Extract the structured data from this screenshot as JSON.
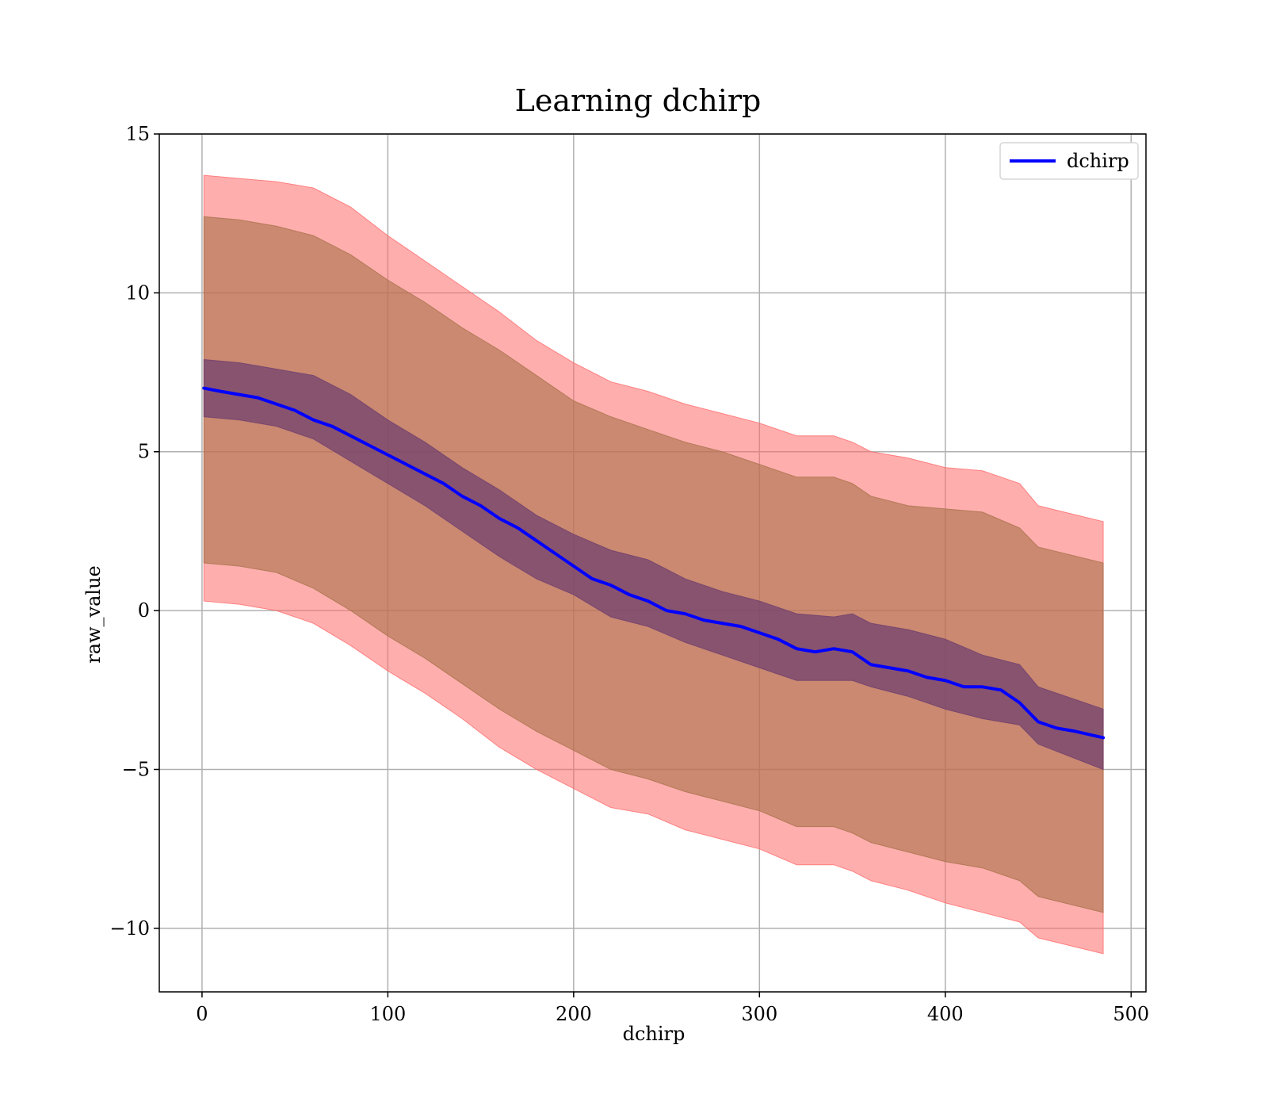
{
  "chart_data": {
    "type": "line",
    "title": "Learning dchirp",
    "xlabel": "dchirp",
    "ylabel": "raw_value",
    "xlim": [
      -23,
      508
    ],
    "ylim": [
      -12,
      15
    ],
    "xticks": [
      0,
      100,
      200,
      300,
      400,
      500
    ],
    "xtick_labels": [
      "0",
      "100",
      "200",
      "300",
      "400",
      "500"
    ],
    "yticks": [
      -10,
      -5,
      0,
      5,
      10,
      15
    ],
    "ytick_labels": [
      "−10",
      "−5",
      "0",
      "5",
      "10",
      "15"
    ],
    "grid": true,
    "legend_position": "top-right",
    "legend": [
      "dchirp"
    ],
    "colors": {
      "line": "#0000ff",
      "outer_band": "#ff6b6b",
      "middle_band": "#a9734b",
      "inner_band": "#6f3f6f"
    },
    "series": [
      {
        "name": "dchirp",
        "x": [
          1,
          10,
          20,
          30,
          40,
          50,
          60,
          70,
          80,
          90,
          100,
          110,
          120,
          130,
          140,
          150,
          160,
          170,
          180,
          190,
          200,
          210,
          220,
          230,
          240,
          250,
          260,
          270,
          280,
          290,
          300,
          310,
          320,
          330,
          340,
          350,
          360,
          370,
          380,
          390,
          400,
          410,
          420,
          430,
          440,
          450,
          460,
          470,
          485
        ],
        "y": [
          7.0,
          6.9,
          6.8,
          6.7,
          6.5,
          6.3,
          6.0,
          5.8,
          5.5,
          5.2,
          4.9,
          4.6,
          4.3,
          4.0,
          3.6,
          3.3,
          2.9,
          2.6,
          2.2,
          1.8,
          1.4,
          1.0,
          0.8,
          0.5,
          0.3,
          0.0,
          -0.1,
          -0.3,
          -0.4,
          -0.5,
          -0.7,
          -0.9,
          -1.2,
          -1.3,
          -1.2,
          -1.3,
          -1.7,
          -1.8,
          -1.9,
          -2.1,
          -2.2,
          -2.4,
          -2.4,
          -2.5,
          -2.9,
          -3.5,
          -3.7,
          -3.8,
          -4.0
        ]
      }
    ],
    "bands": [
      {
        "x": [
          1,
          20,
          40,
          60,
          80,
          100,
          120,
          140,
          160,
          180,
          200,
          220,
          240,
          260,
          280,
          300,
          320,
          340,
          350,
          360,
          380,
          400,
          420,
          440,
          450,
          485
        ],
        "upper": [
          13.7,
          13.6,
          13.5,
          13.3,
          12.7,
          11.8,
          11.0,
          10.2,
          9.4,
          8.5,
          7.8,
          7.2,
          6.9,
          6.5,
          6.2,
          5.9,
          5.5,
          5.5,
          5.3,
          5.0,
          4.8,
          4.5,
          4.4,
          4.0,
          3.3,
          2.8
        ],
        "lower": [
          0.3,
          0.2,
          0.0,
          -0.4,
          -1.1,
          -1.9,
          -2.6,
          -3.4,
          -4.3,
          -5.0,
          -5.6,
          -6.2,
          -6.4,
          -6.9,
          -7.2,
          -7.5,
          -8.0,
          -8.0,
          -8.2,
          -8.5,
          -8.8,
          -9.2,
          -9.5,
          -9.8,
          -10.3,
          -10.8
        ]
      },
      {
        "x": [
          1,
          20,
          40,
          60,
          80,
          100,
          120,
          140,
          160,
          180,
          200,
          220,
          240,
          260,
          280,
          300,
          320,
          340,
          350,
          360,
          380,
          400,
          420,
          440,
          450,
          485
        ],
        "upper": [
          12.4,
          12.3,
          12.1,
          11.8,
          11.2,
          10.4,
          9.7,
          8.9,
          8.2,
          7.4,
          6.6,
          6.1,
          5.7,
          5.3,
          5.0,
          4.6,
          4.2,
          4.2,
          4.0,
          3.6,
          3.3,
          3.2,
          3.1,
          2.6,
          2.0,
          1.5
        ],
        "lower": [
          1.5,
          1.4,
          1.2,
          0.7,
          0.0,
          -0.8,
          -1.5,
          -2.3,
          -3.1,
          -3.8,
          -4.4,
          -5.0,
          -5.3,
          -5.7,
          -6.0,
          -6.3,
          -6.8,
          -6.8,
          -7.0,
          -7.3,
          -7.6,
          -7.9,
          -8.1,
          -8.5,
          -9.0,
          -9.5
        ]
      },
      {
        "x": [
          1,
          20,
          40,
          60,
          80,
          100,
          120,
          140,
          160,
          180,
          200,
          220,
          240,
          260,
          280,
          300,
          320,
          340,
          350,
          360,
          380,
          400,
          420,
          440,
          450,
          485
        ],
        "upper": [
          7.9,
          7.8,
          7.6,
          7.4,
          6.8,
          6.0,
          5.3,
          4.5,
          3.8,
          3.0,
          2.4,
          1.9,
          1.6,
          1.0,
          0.6,
          0.3,
          -0.1,
          -0.2,
          -0.1,
          -0.4,
          -0.6,
          -0.9,
          -1.4,
          -1.7,
          -2.4,
          -3.1
        ],
        "lower": [
          6.1,
          6.0,
          5.8,
          5.4,
          4.7,
          4.0,
          3.3,
          2.5,
          1.7,
          1.0,
          0.5,
          -0.2,
          -0.5,
          -1.0,
          -1.4,
          -1.8,
          -2.2,
          -2.2,
          -2.2,
          -2.4,
          -2.7,
          -3.1,
          -3.4,
          -3.6,
          -4.2,
          -5.0
        ]
      }
    ]
  }
}
